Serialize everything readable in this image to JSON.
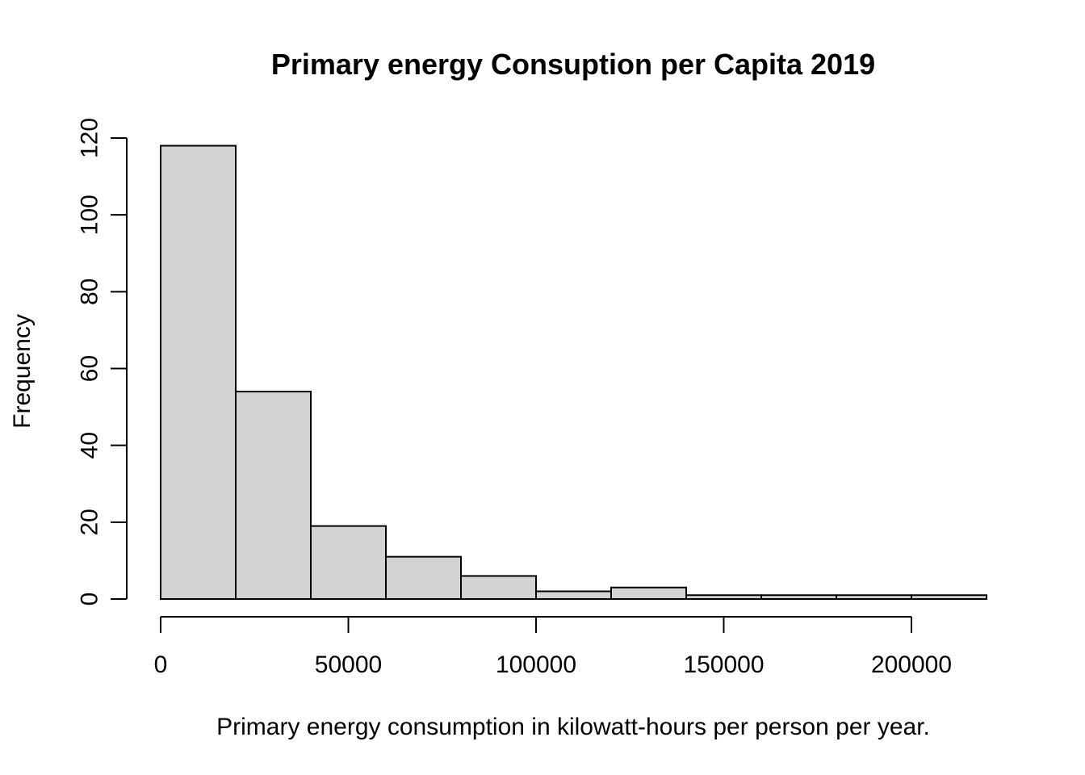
{
  "chart_data": {
    "type": "bar",
    "title": "Primary energy Consuption per Capita 2019",
    "xlabel": "Primary energy consumption in kilowatt-hours per person per year.",
    "ylabel": "Frequency",
    "bins": [
      {
        "start": 0,
        "end": 20000,
        "count": 118
      },
      {
        "start": 20000,
        "end": 40000,
        "count": 54
      },
      {
        "start": 40000,
        "end": 60000,
        "count": 19
      },
      {
        "start": 60000,
        "end": 80000,
        "count": 11
      },
      {
        "start": 80000,
        "end": 100000,
        "count": 6
      },
      {
        "start": 100000,
        "end": 120000,
        "count": 2
      },
      {
        "start": 120000,
        "end": 140000,
        "count": 3
      },
      {
        "start": 140000,
        "end": 160000,
        "count": 1
      },
      {
        "start": 160000,
        "end": 180000,
        "count": 1
      },
      {
        "start": 180000,
        "end": 200000,
        "count": 1
      },
      {
        "start": 200000,
        "end": 220000,
        "count": 1
      }
    ],
    "xticks": [
      "0",
      "50000",
      "100000",
      "150000",
      "200000"
    ],
    "yticks": [
      "0",
      "20",
      "40",
      "60",
      "80",
      "100",
      "120"
    ],
    "xlim": [
      0,
      220000
    ],
    "ylim": [
      0,
      120
    ],
    "grid": false,
    "legend": "none",
    "bar_color": "#d3d3d3",
    "edge_color": "#000000"
  }
}
